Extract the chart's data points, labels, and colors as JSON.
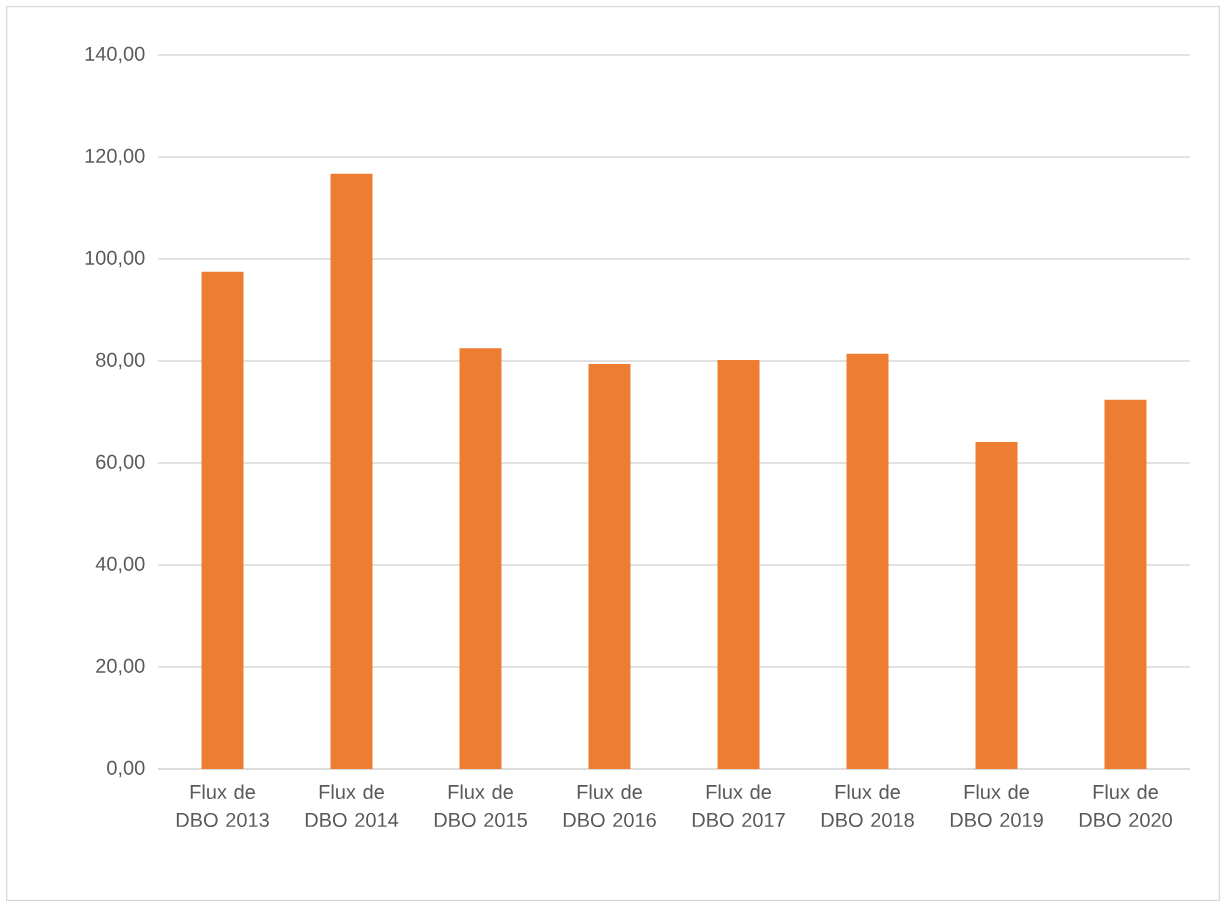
{
  "chart_data": {
    "type": "bar",
    "categories": [
      "Flux de DBO 2013",
      "Flux de DBO 2014",
      "Flux de DBO 2015",
      "Flux de DBO 2016",
      "Flux de DBO 2017",
      "Flux de DBO 2018",
      "Flux de DBO 2019",
      "Flux de DBO 2020"
    ],
    "values": [
      97.5,
      116.7,
      82.5,
      79.4,
      80.2,
      81.4,
      64.1,
      72.4
    ],
    "color": "#ed7d31",
    "ylim": [
      0,
      140
    ],
    "yticks": [
      {
        "value": 0,
        "label": "0,00"
      },
      {
        "value": 20,
        "label": "20,00"
      },
      {
        "value": 40,
        "label": "40,00"
      },
      {
        "value": 60,
        "label": "60,00"
      },
      {
        "value": 80,
        "label": "80,00"
      },
      {
        "value": 100,
        "label": "100,00"
      },
      {
        "value": 120,
        "label": "120,00"
      },
      {
        "value": 140,
        "label": "140,00"
      }
    ],
    "grid": "y"
  }
}
